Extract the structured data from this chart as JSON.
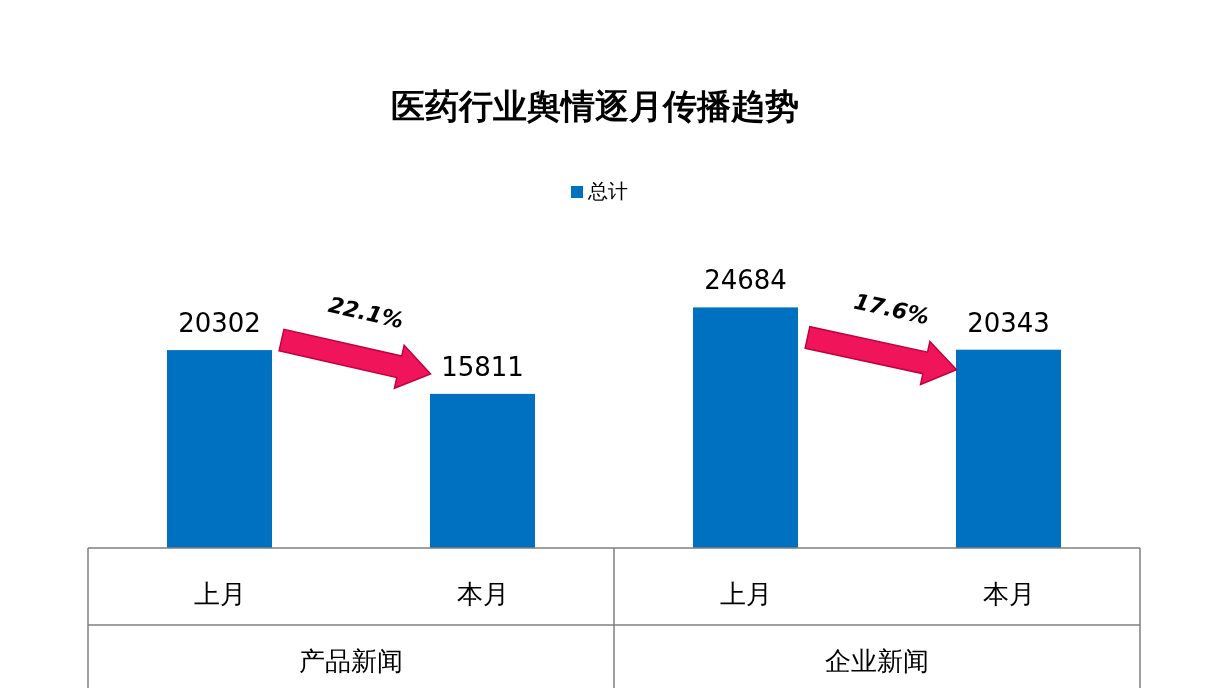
{
  "chart_data": {
    "type": "bar",
    "title": "医药行业舆情逐月传播趋势",
    "categories": [
      "上月",
      "本月",
      "上月",
      "本月"
    ],
    "series": [
      {
        "name": "总计",
        "color": "#0070c0",
        "values": [
          20302,
          15811,
          24684,
          20343
        ]
      }
    ],
    "data_labels": true,
    "legend": "top",
    "annotations": [
      "产品新闻",
      "企业新闻",
      "22.1%",
      "17.6%"
    ]
  }
}
